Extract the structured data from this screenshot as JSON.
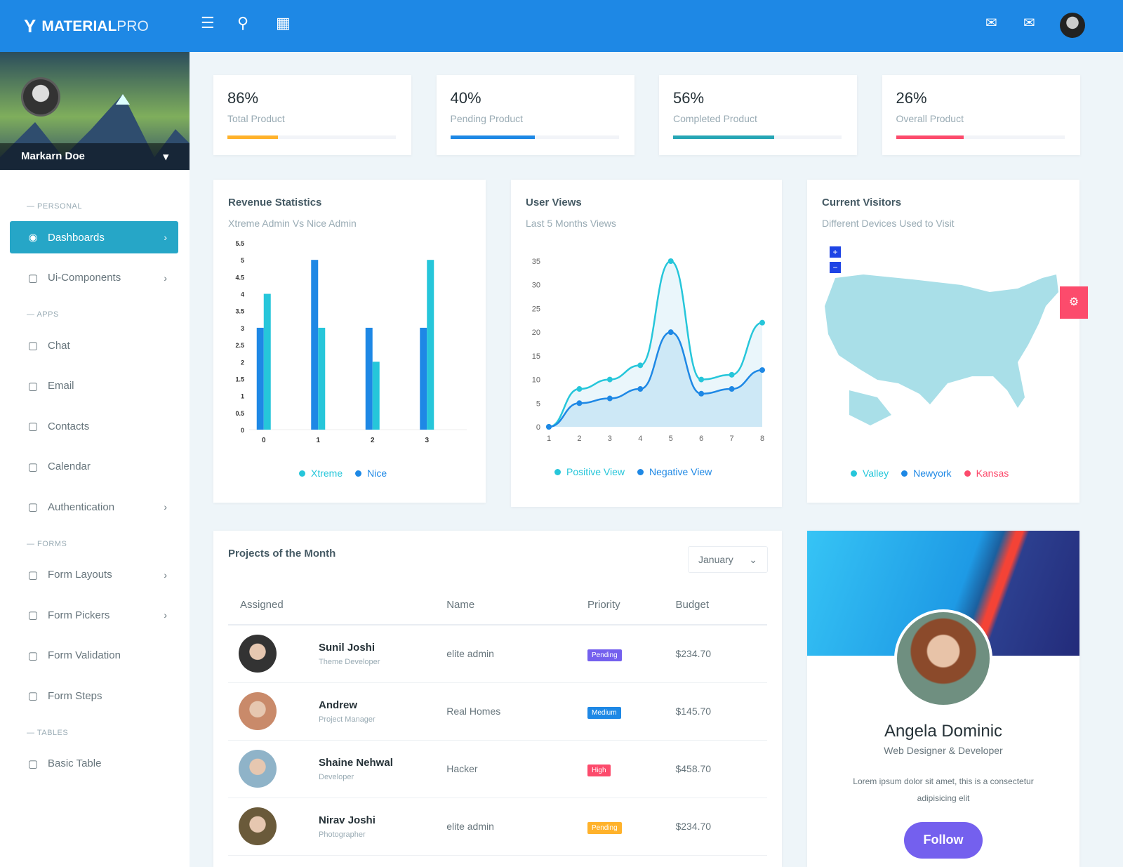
{
  "header": {
    "brand_main": "MATERIAL",
    "brand_accent": "PRO",
    "icons": [
      "menu-icon",
      "search-icon",
      "apps-grid-icon",
      "message-icon",
      "mail-icon",
      "user-avatar"
    ]
  },
  "sidebar": {
    "user_name": "Markarn Doe",
    "sections": [
      {
        "caption": "— PERSONAL",
        "items": [
          {
            "label": "Dashboards",
            "icon": "gauge-icon",
            "active": true,
            "chevron": true
          },
          {
            "label": "Ui-Components",
            "icon": "components-icon",
            "chevron": true
          }
        ]
      },
      {
        "caption": "— APPS",
        "items": [
          {
            "label": "Chat",
            "icon": "chat-icon"
          },
          {
            "label": "Email",
            "icon": "mail-icon"
          },
          {
            "label": "Contacts",
            "icon": "contacts-icon"
          },
          {
            "label": "Calendar",
            "icon": "calendar-icon"
          },
          {
            "label": "Authentication",
            "icon": "user-circle-icon",
            "chevron": true
          }
        ]
      },
      {
        "caption": "— FORMS",
        "items": [
          {
            "label": "Form Layouts",
            "icon": "form-icon",
            "chevron": true
          },
          {
            "label": "Form Pickers",
            "icon": "picker-icon",
            "chevron": true
          },
          {
            "label": "Form Validation",
            "icon": "warning-icon"
          },
          {
            "label": "Form Steps",
            "icon": "steps-icon"
          }
        ]
      },
      {
        "caption": "— TABLES",
        "items": [
          {
            "label": "Basic Table",
            "icon": "table-icon"
          }
        ]
      }
    ]
  },
  "stats": [
    {
      "value": "86%",
      "label": "Total Product",
      "progress": 0.3,
      "color": "#ffb22b"
    },
    {
      "value": "40%",
      "label": "Pending Product",
      "progress": 0.5,
      "color": "#1e88e5"
    },
    {
      "value": "56%",
      "label": "Completed Product",
      "progress": 0.6,
      "color": "#26a6b5"
    },
    {
      "value": "26%",
      "label": "Overall Product",
      "progress": 0.4,
      "color": "#fc4b6c"
    }
  ],
  "revenue": {
    "title": "Revenue Statistics",
    "subtitle": "Xtreme Admin Vs Nice Admin"
  },
  "views": {
    "title": "User Views",
    "subtitle": "Last 5 Months Views"
  },
  "visitors": {
    "title": "Current Visitors",
    "subtitle": "Different Devices Used to Visit",
    "zoom_in": "+",
    "zoom_out": "−",
    "legend": [
      {
        "name": "Valley",
        "color": "#26c6da"
      },
      {
        "name": "Newyork",
        "color": "#1e88e5"
      },
      {
        "name": "Kansas",
        "color": "#fc4b6c"
      }
    ]
  },
  "chart_data": [
    {
      "type": "bar",
      "categories": [
        "0",
        "1",
        "2",
        "3"
      ],
      "ylim": [
        0,
        5.5
      ],
      "yticks": [
        "0",
        "0.5",
        "1",
        "1.5",
        "2",
        "2.5",
        "3",
        "3.5",
        "4",
        "4.5",
        "5",
        "5.5"
      ],
      "series": [
        {
          "name": "Nice",
          "color": "#1e88e5",
          "values": [
            3,
            5,
            3,
            3
          ]
        },
        {
          "name": "Xtreme",
          "color": "#26c6da",
          "values": [
            4,
            3,
            2,
            5
          ]
        }
      ],
      "legend": [
        {
          "name": "Xtreme",
          "color": "#26c6da"
        },
        {
          "name": "Nice",
          "color": "#1e88e5"
        }
      ],
      "grid": false
    },
    {
      "type": "area",
      "x": [
        1,
        2,
        3,
        4,
        5,
        6,
        7,
        8
      ],
      "ylim": [
        0,
        35
      ],
      "yticks": [
        "0",
        "5",
        "10",
        "15",
        "20",
        "25",
        "30",
        "35"
      ],
      "series": [
        {
          "name": "Positive View",
          "color": "#26c6da",
          "values": [
            0,
            8,
            10,
            13,
            35,
            10,
            11,
            22
          ]
        },
        {
          "name": "Negative View",
          "color": "#1e88e5",
          "values": [
            0,
            5,
            6,
            8,
            20,
            7,
            8,
            12
          ]
        }
      ],
      "grid": false
    }
  ],
  "projects": {
    "title": "Projects of the Month",
    "month": "January",
    "columns": [
      "Assigned",
      "Name",
      "Priority",
      "Budget"
    ],
    "rows": [
      {
        "name": "Sunil Joshi",
        "role": "Theme Developer",
        "project": "elite admin",
        "priority": "Pending",
        "priority_color": "#7460ee",
        "budget": "$234.70"
      },
      {
        "name": "Andrew",
        "role": "Project Manager",
        "project": "Real Homes",
        "priority": "Medium",
        "priority_color": "#1e88e5",
        "budget": "$145.70"
      },
      {
        "name": "Shaine Nehwal",
        "role": "Developer",
        "project": "Hacker",
        "priority": "High",
        "priority_color": "#fc4b6c",
        "budget": "$458.70"
      },
      {
        "name": "Nirav Joshi",
        "role": "Photographer",
        "project": "elite admin",
        "priority": "Pending",
        "priority_color": "#ffb22b",
        "budget": "$234.70"
      }
    ]
  },
  "profile": {
    "name": "Angela Dominic",
    "role": "Web Designer & Developer",
    "bio": "Lorem ipsum dolor sit amet, this is a consectetur adipisicing elit",
    "follow": "Follow"
  }
}
